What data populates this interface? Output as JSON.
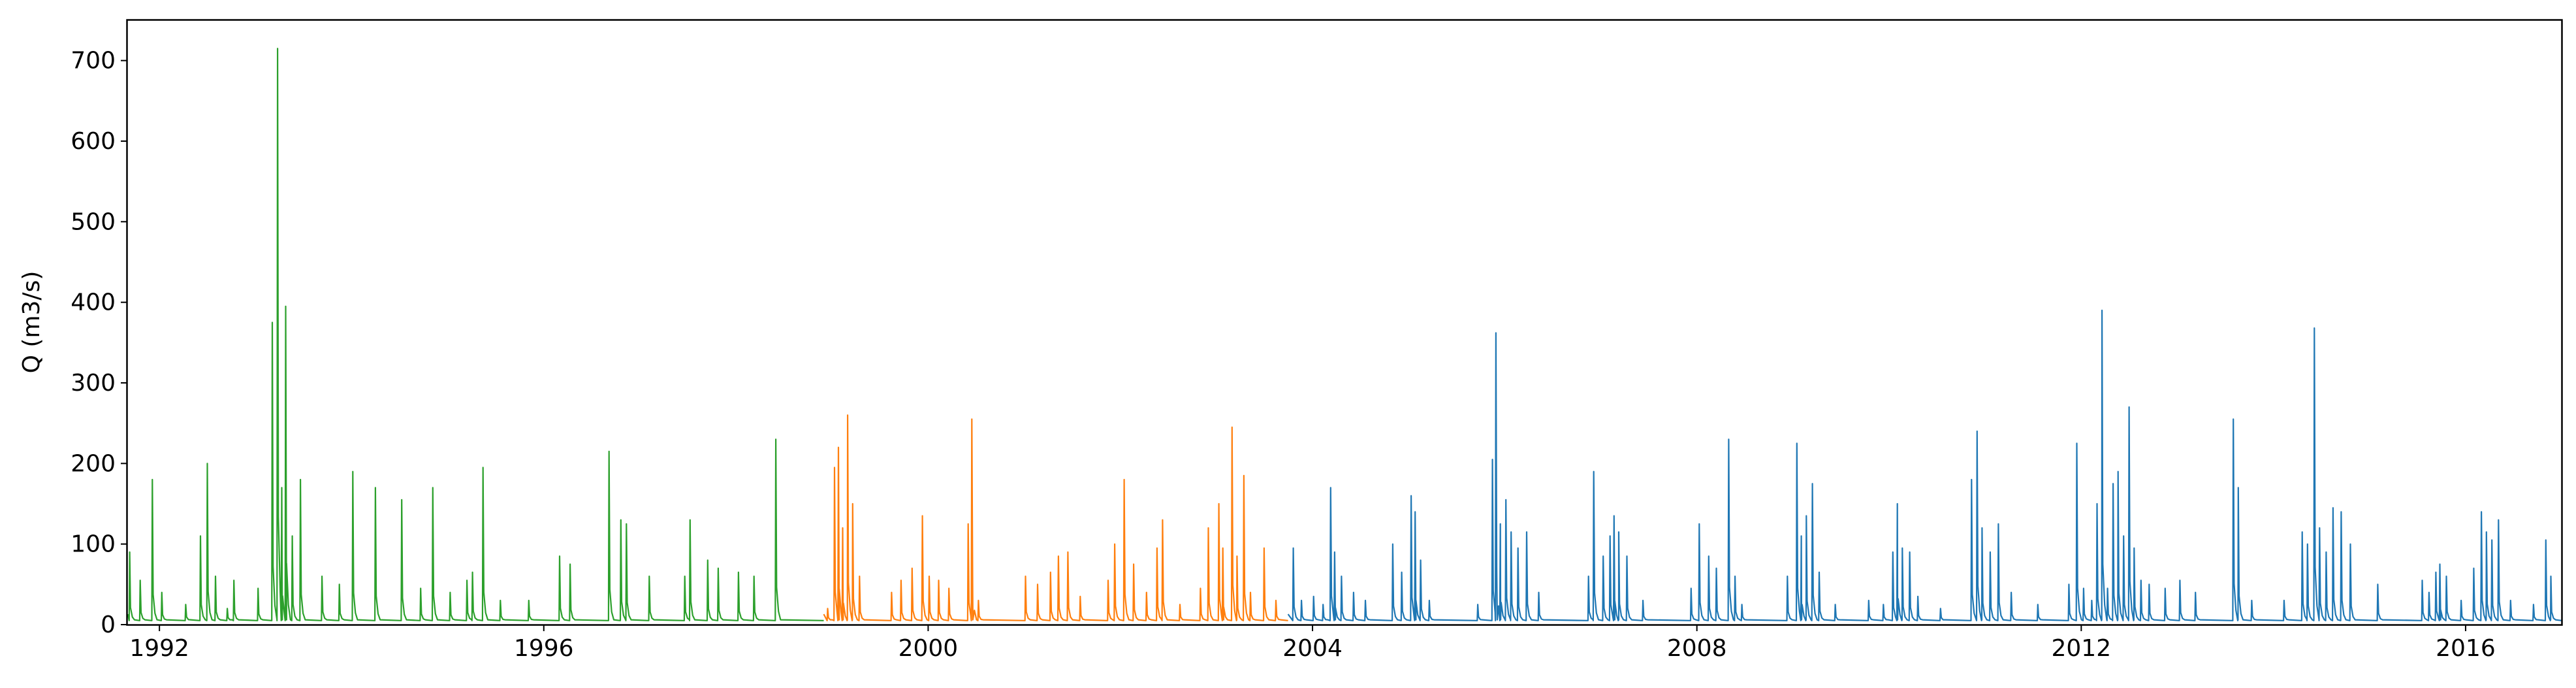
{
  "chart_data": {
    "type": "line",
    "title": "",
    "xlabel": "",
    "ylabel": "Q (m3/s)",
    "xlim": [
      "1991-09-01",
      "2016-12-31"
    ],
    "ylim": [
      0,
      750
    ],
    "x_ticks": [
      "1992",
      "1996",
      "2000",
      "2004",
      "2008",
      "2012",
      "2016"
    ],
    "y_ticks": [
      0,
      100,
      200,
      300,
      400,
      500,
      600,
      700
    ],
    "grid": false,
    "legend": "none",
    "baseflow_approx": 5,
    "series": [
      {
        "color": "#2ca02c",
        "peaks": [
          [
            "1991-09-10",
            90
          ],
          [
            "1991-10-20",
            55
          ],
          [
            "1991-12-05",
            180
          ],
          [
            "1992-01-10",
            40
          ],
          [
            "1992-04-10",
            25
          ],
          [
            "1992-06-05",
            110
          ],
          [
            "1992-07-01",
            200
          ],
          [
            "1992-08-01",
            60
          ],
          [
            "1992-09-15",
            20
          ],
          [
            "1992-10-10",
            55
          ],
          [
            "1993-01-10",
            45
          ],
          [
            "1993-03-05",
            375
          ],
          [
            "1993-03-25",
            715
          ],
          [
            "1993-04-10",
            170
          ],
          [
            "1993-04-25",
            395
          ],
          [
            "1993-05-20",
            110
          ],
          [
            "1993-06-20",
            180
          ],
          [
            "1993-09-10",
            60
          ],
          [
            "1993-11-15",
            50
          ],
          [
            "1994-01-05",
            190
          ],
          [
            "1994-04-01",
            170
          ],
          [
            "1994-07-10",
            155
          ],
          [
            "1994-09-20",
            45
          ],
          [
            "1994-11-05",
            170
          ],
          [
            "1995-01-10",
            40
          ],
          [
            "1995-03-15",
            55
          ],
          [
            "1995-04-05",
            65
          ],
          [
            "1995-05-15",
            195
          ],
          [
            "1995-07-20",
            30
          ],
          [
            "1995-11-05",
            30
          ],
          [
            "1996-03-01",
            85
          ],
          [
            "1996-04-10",
            75
          ],
          [
            "1996-09-05",
            215
          ],
          [
            "1996-10-20",
            130
          ],
          [
            "1996-11-10",
            125
          ],
          [
            "1997-02-05",
            60
          ],
          [
            "1997-06-20",
            60
          ],
          [
            "1997-07-10",
            130
          ],
          [
            "1997-09-15",
            80
          ],
          [
            "1997-10-25",
            70
          ],
          [
            "1998-01-10",
            65
          ],
          [
            "1998-03-10",
            60
          ],
          [
            "1998-06-01",
            230
          ]
        ],
        "end": "1998-11-30"
      },
      {
        "color": "#ff7f0e",
        "peaks": [
          [
            "1998-12-15",
            20
          ],
          [
            "1999-01-10",
            195
          ],
          [
            "1999-01-25",
            220
          ],
          [
            "1999-02-10",
            120
          ],
          [
            "1999-03-01",
            260
          ],
          [
            "1999-03-20",
            150
          ],
          [
            "1999-04-15",
            60
          ],
          [
            "1999-08-15",
            40
          ],
          [
            "1999-09-20",
            55
          ],
          [
            "1999-11-01",
            70
          ],
          [
            "1999-12-10",
            135
          ],
          [
            "2000-01-05",
            60
          ],
          [
            "2000-02-10",
            55
          ],
          [
            "2000-03-20",
            45
          ],
          [
            "2000-06-01",
            125
          ],
          [
            "2000-06-15",
            255
          ],
          [
            "2000-07-10",
            30
          ],
          [
            "2001-01-05",
            60
          ],
          [
            "2001-02-20",
            50
          ],
          [
            "2001-04-10",
            65
          ],
          [
            "2001-05-10",
            85
          ],
          [
            "2001-06-15",
            90
          ],
          [
            "2001-08-01",
            35
          ],
          [
            "2001-11-15",
            55
          ],
          [
            "2001-12-10",
            100
          ],
          [
            "2002-01-15",
            180
          ],
          [
            "2002-02-20",
            75
          ],
          [
            "2002-04-10",
            40
          ],
          [
            "2002-05-20",
            95
          ],
          [
            "2002-06-10",
            130
          ],
          [
            "2002-08-15",
            25
          ],
          [
            "2002-11-01",
            45
          ],
          [
            "2002-12-01",
            120
          ],
          [
            "2003-01-10",
            150
          ],
          [
            "2003-01-25",
            95
          ],
          [
            "2003-03-01",
            245
          ],
          [
            "2003-03-20",
            85
          ],
          [
            "2003-04-15",
            185
          ],
          [
            "2003-05-10",
            40
          ],
          [
            "2003-07-01",
            95
          ],
          [
            "2003-08-15",
            30
          ]
        ],
        "end": "2003-09-30"
      },
      {
        "color": "#1f77b4",
        "peaks": [
          [
            "2003-10-20",
            95
          ],
          [
            "2003-11-20",
            30
          ],
          [
            "2004-01-05",
            35
          ],
          [
            "2004-02-10",
            25
          ],
          [
            "2004-03-10",
            170
          ],
          [
            "2004-03-25",
            90
          ],
          [
            "2004-04-20",
            60
          ],
          [
            "2004-06-05",
            40
          ],
          [
            "2004-07-20",
            30
          ],
          [
            "2004-11-01",
            100
          ],
          [
            "2004-12-05",
            65
          ],
          [
            "2005-01-10",
            160
          ],
          [
            "2005-01-25",
            140
          ],
          [
            "2005-02-15",
            80
          ],
          [
            "2005-03-20",
            30
          ],
          [
            "2005-09-20",
            25
          ],
          [
            "2005-11-15",
            205
          ],
          [
            "2005-11-28",
            362
          ],
          [
            "2005-12-15",
            125
          ],
          [
            "2006-01-05",
            155
          ],
          [
            "2006-01-25",
            115
          ],
          [
            "2006-02-20",
            95
          ],
          [
            "2006-03-25",
            115
          ],
          [
            "2006-05-10",
            40
          ],
          [
            "2006-11-15",
            60
          ],
          [
            "2006-12-05",
            190
          ],
          [
            "2007-01-10",
            85
          ],
          [
            "2007-02-05",
            110
          ],
          [
            "2007-02-20",
            135
          ],
          [
            "2007-03-10",
            115
          ],
          [
            "2007-04-10",
            85
          ],
          [
            "2007-06-10",
            30
          ],
          [
            "2007-12-10",
            45
          ],
          [
            "2008-01-10",
            125
          ],
          [
            "2008-02-15",
            85
          ],
          [
            "2008-03-15",
            70
          ],
          [
            "2008-05-01",
            230
          ],
          [
            "2008-05-25",
            60
          ],
          [
            "2008-06-20",
            25
          ],
          [
            "2008-12-10",
            60
          ],
          [
            "2009-01-15",
            225
          ],
          [
            "2009-02-01",
            110
          ],
          [
            "2009-02-20",
            135
          ],
          [
            "2009-03-15",
            175
          ],
          [
            "2009-04-10",
            65
          ],
          [
            "2009-06-10",
            25
          ],
          [
            "2009-10-15",
            30
          ],
          [
            "2009-12-10",
            25
          ],
          [
            "2010-01-15",
            90
          ],
          [
            "2010-02-01",
            150
          ],
          [
            "2010-02-20",
            95
          ],
          [
            "2010-03-20",
            90
          ],
          [
            "2010-04-20",
            35
          ],
          [
            "2010-07-15",
            20
          ],
          [
            "2010-11-10",
            180
          ],
          [
            "2010-12-01",
            240
          ],
          [
            "2010-12-20",
            120
          ],
          [
            "2011-01-20",
            90
          ],
          [
            "2011-02-20",
            125
          ],
          [
            "2011-04-10",
            40
          ],
          [
            "2011-07-20",
            25
          ],
          [
            "2011-11-15",
            50
          ],
          [
            "2011-12-15",
            225
          ],
          [
            "2012-01-10",
            45
          ],
          [
            "2012-02-10",
            30
          ],
          [
            "2012-03-01",
            150
          ],
          [
            "2012-03-20",
            390
          ],
          [
            "2012-04-10",
            45
          ],
          [
            "2012-05-01",
            175
          ],
          [
            "2012-05-20",
            190
          ],
          [
            "2012-06-10",
            110
          ],
          [
            "2012-07-01",
            270
          ],
          [
            "2012-07-20",
            95
          ],
          [
            "2012-08-15",
            55
          ],
          [
            "2012-09-15",
            50
          ],
          [
            "2012-11-15",
            45
          ],
          [
            "2013-01-10",
            55
          ],
          [
            "2013-03-10",
            40
          ],
          [
            "2013-08-01",
            255
          ],
          [
            "2013-08-20",
            170
          ],
          [
            "2013-10-10",
            30
          ],
          [
            "2014-02-10",
            30
          ],
          [
            "2014-04-20",
            115
          ],
          [
            "2014-05-10",
            100
          ],
          [
            "2014-06-05",
            368
          ],
          [
            "2014-06-25",
            120
          ],
          [
            "2014-07-20",
            90
          ],
          [
            "2014-08-15",
            145
          ],
          [
            "2014-09-15",
            140
          ],
          [
            "2014-10-20",
            100
          ],
          [
            "2015-02-01",
            50
          ],
          [
            "2015-07-20",
            55
          ],
          [
            "2015-08-15",
            40
          ],
          [
            "2015-09-10",
            65
          ],
          [
            "2015-09-25",
            75
          ],
          [
            "2015-10-20",
            60
          ],
          [
            "2015-12-15",
            30
          ],
          [
            "2016-02-01",
            70
          ],
          [
            "2016-03-01",
            140
          ],
          [
            "2016-03-20",
            115
          ],
          [
            "2016-04-10",
            105
          ],
          [
            "2016-05-05",
            130
          ],
          [
            "2016-06-20",
            30
          ],
          [
            "2016-09-15",
            25
          ],
          [
            "2016-11-01",
            105
          ],
          [
            "2016-11-20",
            60
          ]
        ],
        "end": "2016-12-31"
      }
    ]
  }
}
